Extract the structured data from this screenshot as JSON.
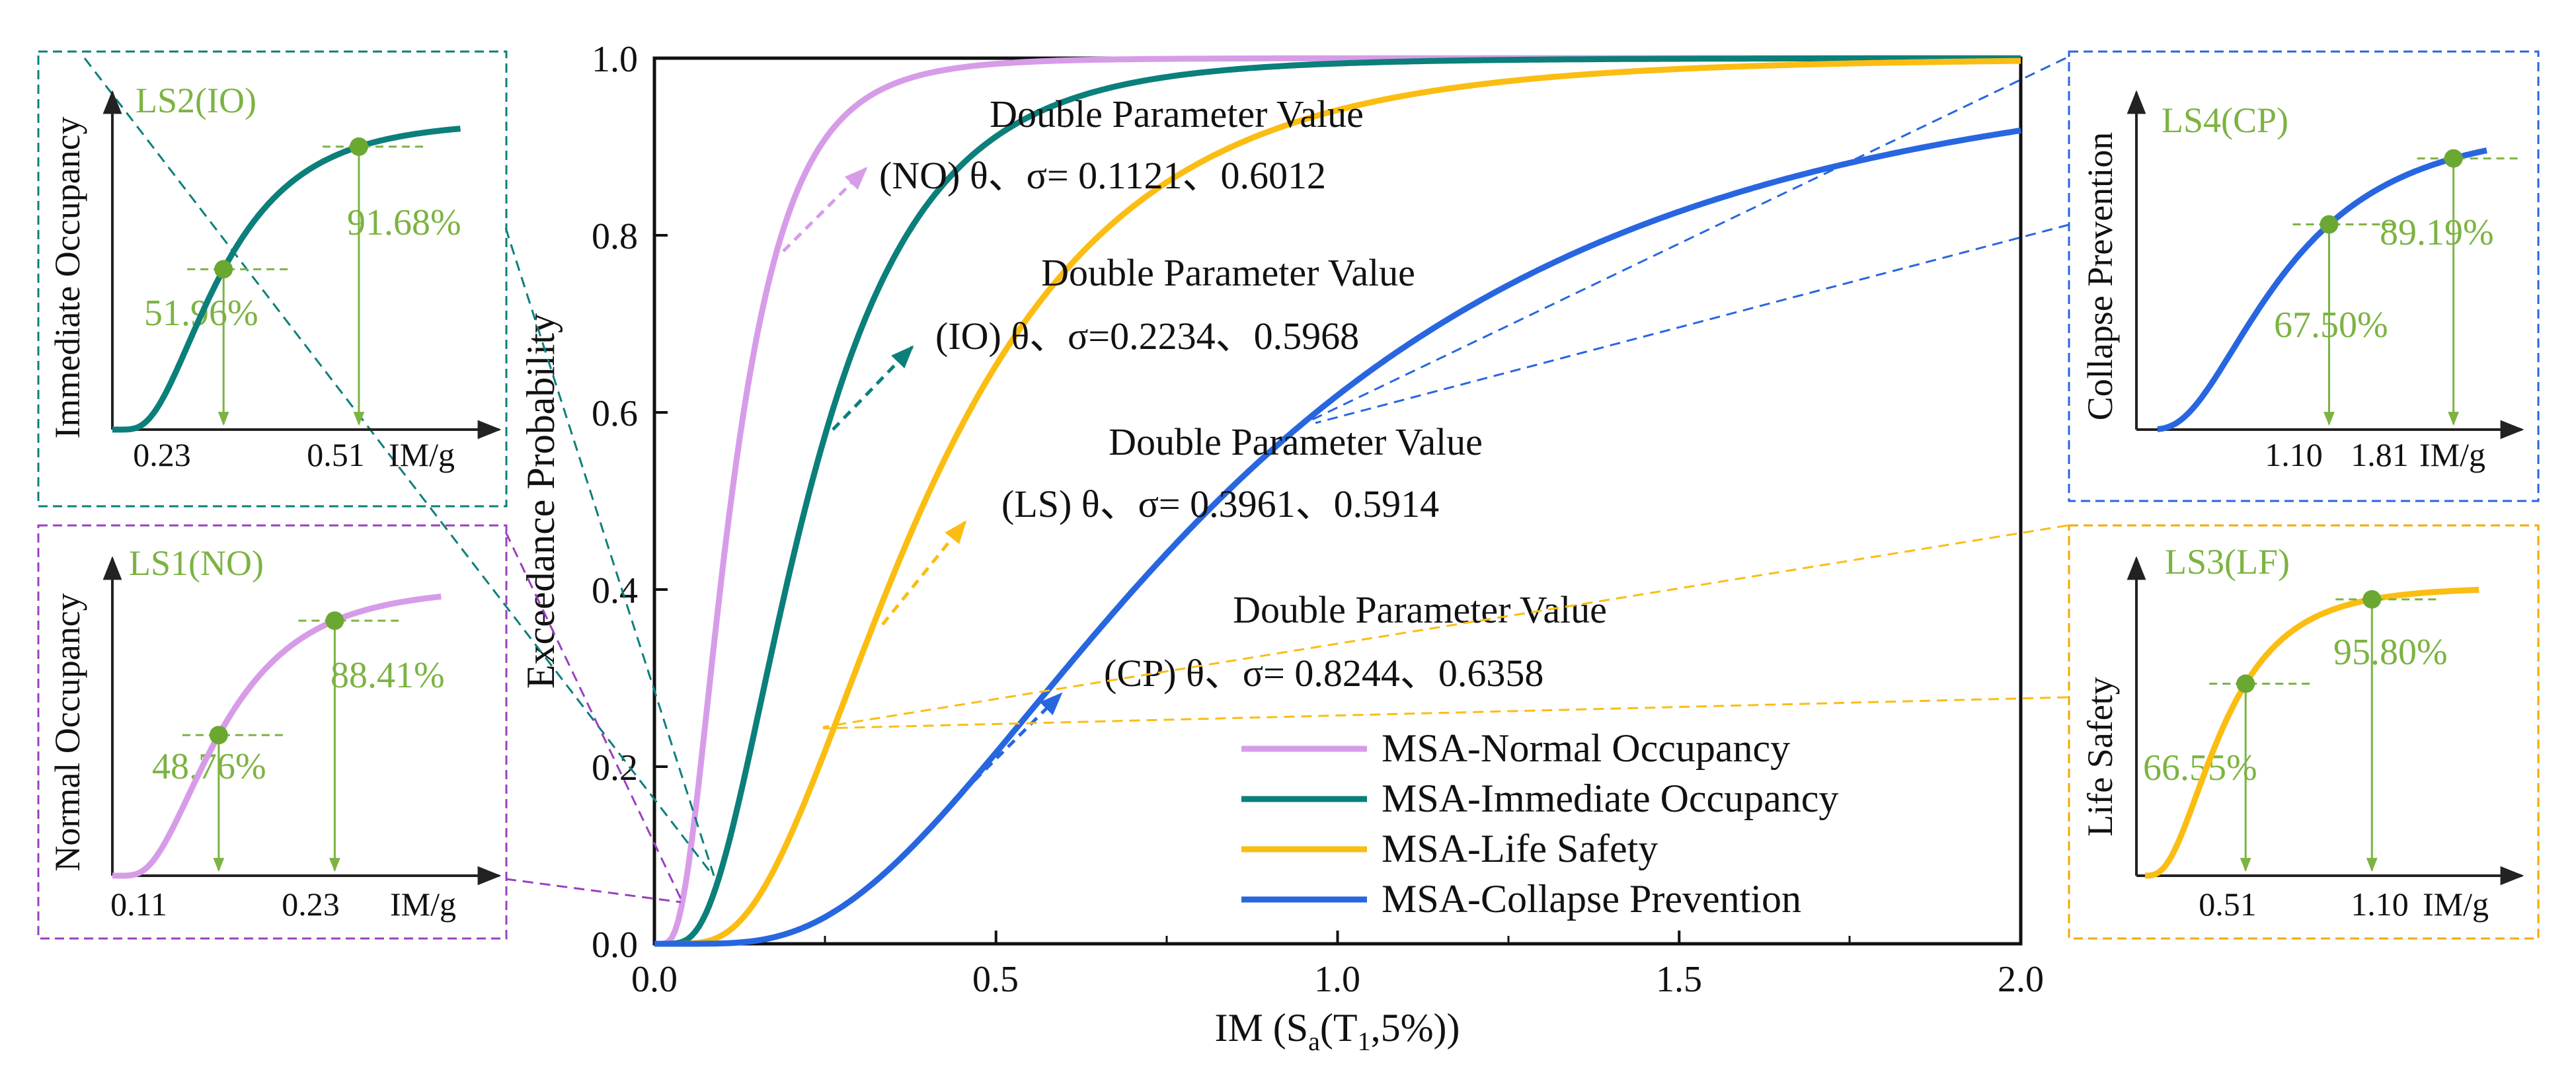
{
  "chart_data": [
    {
      "type": "line",
      "role": "main",
      "xlabel_main": "IM (S",
      "xlabel_sub_a": "a",
      "xlabel_mid": "(T",
      "xlabel_sub_1": "1",
      "xlabel_tail": ",5%))",
      "ylabel": "Exceedance Probability",
      "xlim": [
        0.0,
        2.0
      ],
      "ylim": [
        0.0,
        1.0
      ],
      "xticks": [
        "0.0",
        "0.5",
        "1.0",
        "1.5",
        "2.0"
      ],
      "yticks": [
        "0.0",
        "0.2",
        "0.4",
        "0.6",
        "0.8",
        "1.0"
      ],
      "series": [
        {
          "name": "MSA-Normal Occupancy",
          "color": "#d79ce8",
          "theta": 0.1121,
          "sigma": 0.6012
        },
        {
          "name": "MSA-Immediate Occupancy",
          "color": "#0b7f7a",
          "theta": 0.2234,
          "sigma": 0.5968
        },
        {
          "name": "MSA-Life Safety",
          "color": "#fbbd12",
          "theta": 0.3961,
          "sigma": 0.5914
        },
        {
          "name": "MSA-Collapse Prevention",
          "color": "#2866e0",
          "theta": 0.8244,
          "sigma": 0.6358
        }
      ],
      "annotations": [
        {
          "title": "Double Parameter Value",
          "line": "(NO) θ、σ= 0.1121、0.6012",
          "color": "#d79ce8"
        },
        {
          "title": "Double Parameter Value",
          "line": "(IO)  θ、σ=0.2234、0.5968",
          "color": "#0b7f7a"
        },
        {
          "title": "Double Parameter Value",
          "line": "(LS)  θ、σ= 0.3961、0.5914",
          "color": "#fbbd12"
        },
        {
          "title": "Double Parameter Value",
          "line": "(CP)  θ、σ= 0.8244、0.6358",
          "color": "#2866e0"
        }
      ]
    },
    {
      "type": "line",
      "role": "inset",
      "id": "io",
      "title": "LS2(IO)",
      "ylabel": "Immediate Occupancy",
      "xlabel": "IM/g",
      "xticks": [
        "0.23",
        "0.51"
      ],
      "points": [
        {
          "x": 0.23,
          "pct": "51.96%"
        },
        {
          "x": 0.51,
          "pct": "91.68%"
        }
      ],
      "color": "#0b7f7a",
      "frame_color": "#0b7f7a"
    },
    {
      "type": "line",
      "role": "inset",
      "id": "no",
      "title": "LS1(NO)",
      "ylabel": "Normal Occupancy",
      "xlabel": "IM/g",
      "xticks": [
        "0.11",
        "0.23"
      ],
      "points": [
        {
          "x": 0.11,
          "pct": "48.76%"
        },
        {
          "x": 0.23,
          "pct": "88.41%"
        }
      ],
      "color": "#d79ce8",
      "frame_color": "#9b3fc0"
    },
    {
      "type": "line",
      "role": "inset",
      "id": "cp",
      "title": "LS4(CP)",
      "ylabel": "Collapse Prevention",
      "xlabel": "IM/g",
      "xticks": [
        "1.10",
        "1.81"
      ],
      "points": [
        {
          "x": 1.1,
          "pct": "67.50%"
        },
        {
          "x": 1.81,
          "pct": "89.19%"
        }
      ],
      "color": "#2866e0",
      "frame_color": "#2866e0"
    },
    {
      "type": "line",
      "role": "inset",
      "id": "lf",
      "title": "LS3(LF)",
      "ylabel": "Life Safety",
      "xlabel": "IM/g",
      "xticks": [
        "0.51",
        "1.10"
      ],
      "points": [
        {
          "x": 0.51,
          "pct": "66.55%"
        },
        {
          "x": 1.1,
          "pct": "95.80%"
        }
      ],
      "color": "#fbbd12",
      "frame_color": "#f5a800"
    }
  ],
  "colors": {
    "inset_text": "#7cb342",
    "inset_marker": "#6aa832",
    "axis": "#111111"
  }
}
